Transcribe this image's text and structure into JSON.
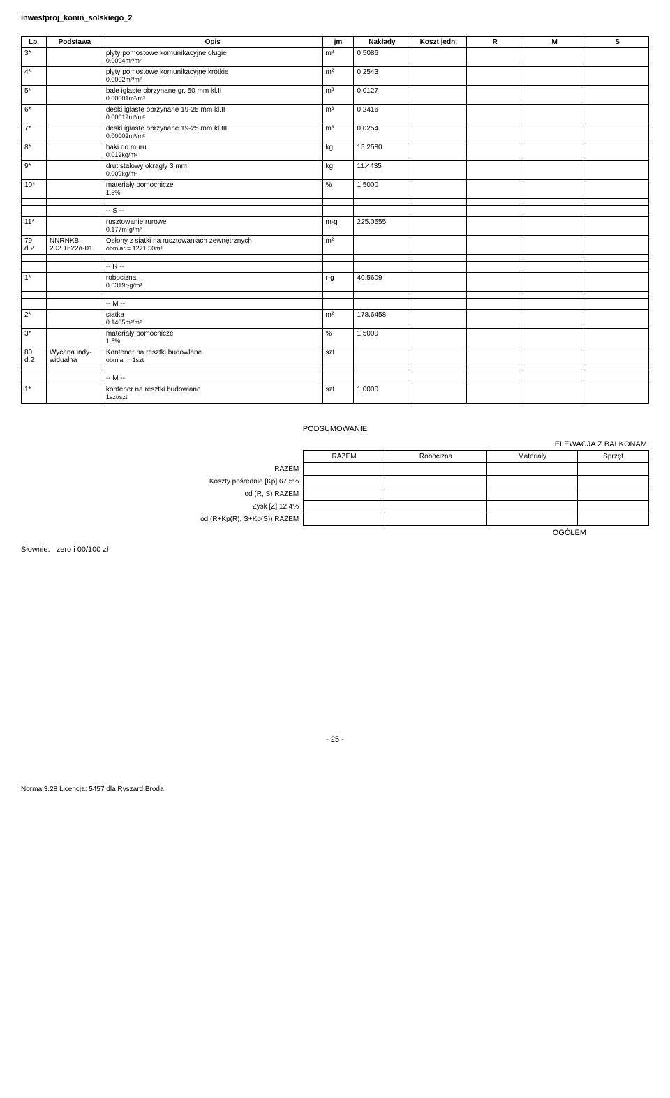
{
  "doc_title": "inwestproj_konin_solskiego_2",
  "headers": {
    "lp": "Lp.",
    "podstawa": "Podstawa",
    "opis": "Opis",
    "jm": "jm",
    "naklady": "Nakłady",
    "koszt": "Koszt jedn.",
    "r": "R",
    "m": "M",
    "s": "S"
  },
  "rows": [
    {
      "lp": "3*",
      "opis": "płyty pomostowe komunikacyjne długie",
      "sub": "0.0004m²/m²",
      "jm": "m²",
      "nak": "0.5086"
    },
    {
      "lp": "4*",
      "opis": "płyty pomostowe komunikacyjne krótkie",
      "sub": "0.0002m²/m²",
      "jm": "m²",
      "nak": "0.2543"
    },
    {
      "lp": "5*",
      "opis": "bale iglaste obrzynane gr. 50 mm kl.II",
      "sub": "0.00001m³/m²",
      "jm": "m³",
      "nak": "0.0127"
    },
    {
      "lp": "6*",
      "opis": "deski iglaste obrzynane 19-25 mm kl.II",
      "sub": "0.00019m³/m²",
      "jm": "m³",
      "nak": "0.2416"
    },
    {
      "lp": "7*",
      "opis": "deski iglaste obrzynane 19-25 mm kl.III",
      "sub": "0.00002m³/m²",
      "jm": "m³",
      "nak": "0.0254"
    },
    {
      "lp": "8*",
      "opis": "haki do muru",
      "sub": "0.012kg/m²",
      "jm": "kg",
      "nak": "15.2580"
    },
    {
      "lp": "9*",
      "opis": "drut stalowy okrągły 3 mm",
      "sub": "0.009kg/m²",
      "jm": "kg",
      "nak": "11.4435"
    },
    {
      "lp": "10*",
      "opis": "materiały pomocnicze",
      "sub": "1.5%",
      "jm": "%",
      "nak": "1.5000"
    }
  ],
  "section_s": "-- S --",
  "row11": {
    "lp": "11*",
    "opis": "rusztowanie rurowe",
    "sub": "0.177m-g/m²",
    "jm": "m-g",
    "nak": "225.0555"
  },
  "row79": {
    "lp": "79",
    "pod1": "NNRNKB",
    "lp2": "d.2",
    "pod2": "202 1622a-01",
    "opis": "Osłony z siatki na rusztowaniach zewnętrznych",
    "sub": "obmiar = 1271.50m²",
    "jm": "m²"
  },
  "section_r": "-- R --",
  "row_r1": {
    "lp": "1*",
    "opis": "robocizna",
    "sub": "0.0319r-g/m²",
    "jm": "r-g",
    "nak": "40.5609"
  },
  "section_m": "-- M --",
  "row_m2": {
    "lp": "2*",
    "opis": "siatka",
    "sub": "0.1405m²/m²",
    "jm": "m²",
    "nak": "178.6458"
  },
  "row_m3": {
    "lp": "3*",
    "opis": "materiały pomocnicze",
    "sub": "1.5%",
    "jm": "%",
    "nak": "1.5000"
  },
  "row80": {
    "lp": "80",
    "pod1": "Wycena indy-",
    "lp2": "d.2",
    "pod2": "widualna",
    "opis": "Kontener na resztki budowlane",
    "sub": "obmiar = 1szt",
    "jm": "szt"
  },
  "section_m2": "-- M --",
  "row_final": {
    "lp": "1*",
    "opis": "kontener na resztki budowlane",
    "sub": "1szt/szt",
    "jm": "szt",
    "nak": "1.0000"
  },
  "summary": {
    "title": "PODSUMOWANIE",
    "caption": "ELEWACJA Z BALKONAMI",
    "cols": {
      "razem": "RAZEM",
      "robocizna": "Robocizna",
      "materialy": "Materiały",
      "sprzet": "Sprzęt"
    },
    "labels": {
      "razem": "RAZEM",
      "kp": "Koszty pośrednie [Kp] 67.5%",
      "od_rs": "od (R, S) RAZEM",
      "zysk": "Zysk [Z] 12.4%",
      "od_rkp": "od (R+Kp(R), S+Kp(S)) RAZEM"
    },
    "ogolm": "OGÓŁEM"
  },
  "slownie_label": "Słownie:",
  "slownie_val": "zero i 00/100 zł",
  "page_num": "- 25 -",
  "footer": "Norma 3.28 Licencja: 5457 dla Ryszard Broda"
}
